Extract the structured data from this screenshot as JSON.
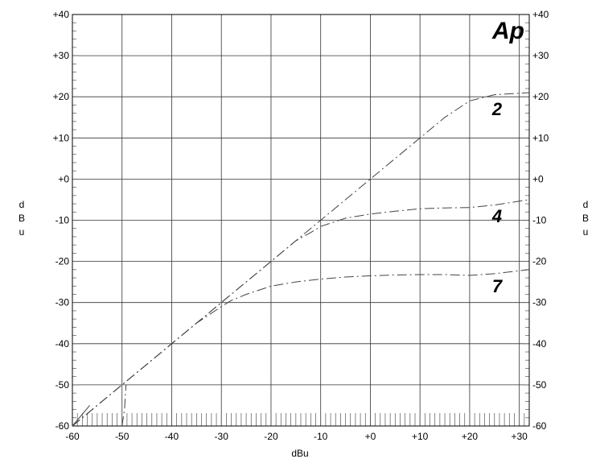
{
  "chart_data": {
    "type": "line",
    "logo": "Ap",
    "xlabel": "dBu",
    "ylabel": "dBu",
    "xlim": [
      -60,
      32
    ],
    "ylim": [
      -60,
      40
    ],
    "xticks": [
      -60,
      -50,
      -40,
      -30,
      -20,
      -10,
      0,
      10,
      20,
      30
    ],
    "xtick_labels": [
      "-60",
      "-50",
      "-40",
      "-30",
      "-20",
      "-10",
      "+0",
      "+10",
      "+20",
      "+30"
    ],
    "yticks": [
      -60,
      -50,
      -40,
      -30,
      -20,
      -10,
      0,
      10,
      20,
      30,
      40
    ],
    "ytick_labels": [
      "-60",
      "-50",
      "-40",
      "-30",
      "-20",
      "-10",
      "+0",
      "+10",
      "+20",
      "+30",
      "+40"
    ],
    "grid": true,
    "series": [
      {
        "name": "2",
        "style": "dash-dot",
        "x": [
          -60,
          -55,
          -50,
          -45,
          -40,
          -35,
          -30,
          -25,
          -20,
          -15,
          -10,
          -5,
          0,
          5,
          10,
          15,
          20,
          25,
          32
        ],
        "y": [
          -60,
          -55,
          -50,
          -45,
          -40,
          -35,
          -30,
          -25,
          -20,
          -15,
          -10,
          -5,
          0,
          5,
          10,
          15,
          19,
          20.5,
          21
        ]
      },
      {
        "name": "4",
        "style": "dash-dot",
        "x": [
          -60,
          -55,
          -50,
          -45,
          -40,
          -35,
          -30,
          -25,
          -20,
          -15,
          -12,
          -10,
          -5,
          0,
          5,
          10,
          15,
          20,
          25,
          32
        ],
        "y": [
          -60,
          -55,
          -50,
          -45,
          -40,
          -35,
          -30,
          -25,
          -20,
          -15,
          -13,
          -11.5,
          -9.5,
          -8.5,
          -7.8,
          -7.2,
          -7,
          -6.9,
          -6.3,
          -5
        ]
      },
      {
        "name": "7",
        "style": "dash-dot",
        "x": [
          -60,
          -55,
          -50,
          -45,
          -40,
          -35,
          -30,
          -28,
          -25,
          -20,
          -15,
          -10,
          -5,
          0,
          5,
          10,
          15,
          20,
          25,
          32
        ],
        "y": [
          -60,
          -55,
          -50,
          -45,
          -40,
          -35,
          -31,
          -29.5,
          -28,
          -26,
          -25,
          -24.3,
          -23.8,
          -23.5,
          -23.3,
          -23.2,
          -23.2,
          -23.4,
          -23,
          -22
        ]
      },
      {
        "name": "",
        "style": "solid",
        "x": [
          -60,
          -56.5
        ],
        "y": [
          -60,
          -55
        ]
      },
      {
        "name": "",
        "style": "dash-dot",
        "x": [
          -50,
          -49.5,
          -49.2
        ],
        "y": [
          -60,
          -56,
          -50
        ]
      }
    ]
  }
}
